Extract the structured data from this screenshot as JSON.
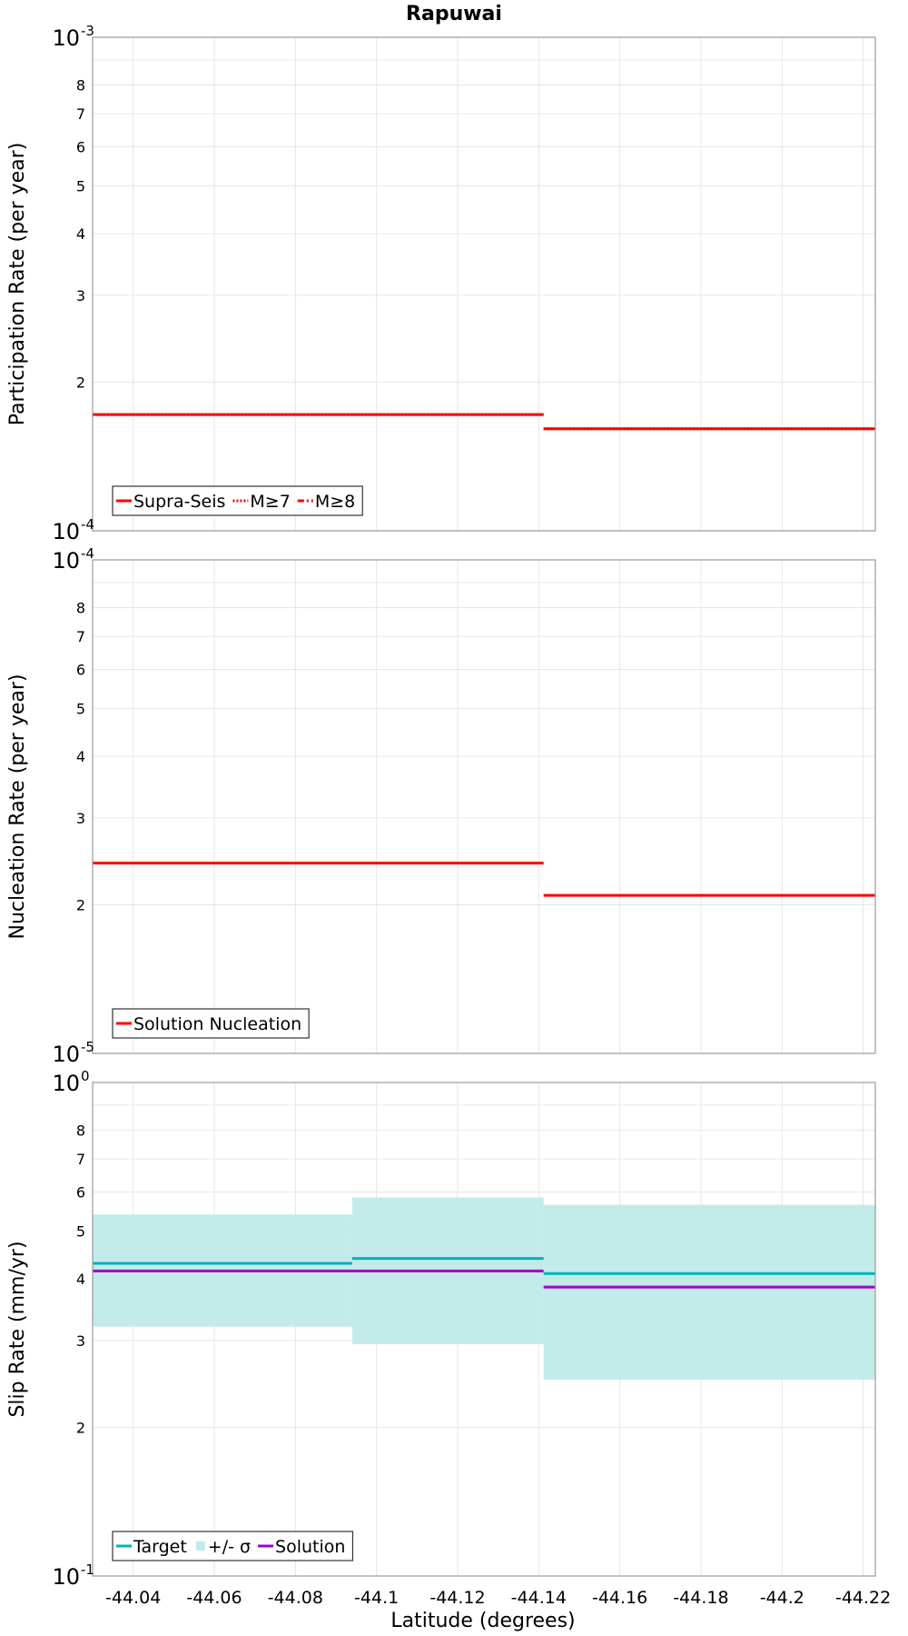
{
  "chart_data": {
    "title": "Rapuwai",
    "type": "line",
    "xlabel": "Latitude (degrees)",
    "xlim": [
      -44.03,
      -44.223
    ],
    "x_ticks": [
      -44.04,
      -44.06,
      -44.08,
      -44.1,
      -44.12,
      -44.14,
      -44.16,
      -44.18,
      -44.2,
      -44.22
    ],
    "x_tick_labels": [
      "-44.04",
      "-44.06",
      "-44.08",
      "-44.1",
      "-44.12",
      "-44.14",
      "-44.16",
      "-44.18",
      "-44.2",
      "-44.22"
    ],
    "grid": true,
    "legend_placement": "bottom-left",
    "panels": [
      {
        "ylabel": "Participation Rate (per year)",
        "yscale": "log",
        "ylim": [
          0.0001,
          0.001
        ],
        "y_major_labels": [
          {
            "base": "10",
            "exp": "-3",
            "value": 0.001
          },
          {
            "base": "10",
            "exp": "-4",
            "value": 0.0001
          }
        ],
        "y_minor_labels": [
          {
            "label": "8",
            "value": 0.0008
          },
          {
            "label": "7",
            "value": 0.0007
          },
          {
            "label": "6",
            "value": 0.0006
          },
          {
            "label": "5",
            "value": 0.0005
          },
          {
            "label": "4",
            "value": 0.0004
          },
          {
            "label": "3",
            "value": 0.0003
          },
          {
            "label": "2",
            "value": 0.0002
          }
        ],
        "series": [
          {
            "name": "Supra-Seis",
            "color": "#ff0000",
            "style": "solid",
            "segments": [
              {
                "x": [
                  -44.03,
                  -44.1412
                ],
                "y": 0.000172
              },
              {
                "x": [
                  -44.1412,
                  -44.223
                ],
                "y": 0.000161
              }
            ]
          },
          {
            "name": "M≥7",
            "color": "#ff0000",
            "style": "dotted",
            "segments": [
              {
                "x": [
                  -44.03,
                  -44.1412
                ],
                "y": 0.000172
              },
              {
                "x": [
                  -44.1412,
                  -44.223
                ],
                "y": 0.000161
              }
            ]
          },
          {
            "name": "M≥8",
            "color": "#ff0000",
            "style": "dashdot",
            "segments": []
          }
        ]
      },
      {
        "ylabel": "Nucleation Rate (per year)",
        "yscale": "log",
        "ylim": [
          1e-05,
          0.0001
        ],
        "y_major_labels": [
          {
            "base": "10",
            "exp": "-4",
            "value": 0.0001
          },
          {
            "base": "10",
            "exp": "-5",
            "value": 1e-05
          }
        ],
        "y_minor_labels": [
          {
            "label": "8",
            "value": 8e-05
          },
          {
            "label": "7",
            "value": 7e-05
          },
          {
            "label": "6",
            "value": 6e-05
          },
          {
            "label": "5",
            "value": 5e-05
          },
          {
            "label": "4",
            "value": 4e-05
          },
          {
            "label": "3",
            "value": 3e-05
          },
          {
            "label": "2",
            "value": 2e-05
          }
        ],
        "series": [
          {
            "name": "Solution Nucleation",
            "color": "#ff0000",
            "style": "solid",
            "segments": [
              {
                "x": [
                  -44.03,
                  -44.1412
                ],
                "y": 2.43e-05
              },
              {
                "x": [
                  -44.1412,
                  -44.223
                ],
                "y": 2.09e-05
              }
            ]
          }
        ]
      },
      {
        "ylabel": "Slip Rate (mm/yr)",
        "yscale": "log",
        "ylim": [
          0.1,
          1
        ],
        "y_major_labels": [
          {
            "base": "10",
            "exp": "0",
            "value": 1
          },
          {
            "base": "10",
            "exp": "-1",
            "value": 0.1
          }
        ],
        "y_minor_labels": [
          {
            "label": "8",
            "value": 0.8
          },
          {
            "label": "7",
            "value": 0.7
          },
          {
            "label": "6",
            "value": 0.6
          },
          {
            "label": "5",
            "value": 0.5
          },
          {
            "label": "4",
            "value": 0.4
          },
          {
            "label": "3",
            "value": 0.3
          },
          {
            "label": "2",
            "value": 0.2
          }
        ],
        "series": [
          {
            "name": "Target",
            "color": "#00b3b3",
            "style": "solid",
            "segments": [
              {
                "x": [
                  -44.03,
                  -44.094
                ],
                "y": 0.43
              },
              {
                "x": [
                  -44.094,
                  -44.1412
                ],
                "y": 0.44
              },
              {
                "x": [
                  -44.1412,
                  -44.223
                ],
                "y": 0.41
              }
            ]
          },
          {
            "name": "+/- σ",
            "color": "#c2ebea",
            "style": "band",
            "bands": [
              {
                "x": [
                  -44.03,
                  -44.094
                ],
                "y": [
                  0.32,
                  0.54
                ]
              },
              {
                "x": [
                  -44.094,
                  -44.1412
                ],
                "y": [
                  0.295,
                  0.585
                ]
              },
              {
                "x": [
                  -44.1412,
                  -44.223
                ],
                "y": [
                  0.25,
                  0.565
                ]
              }
            ]
          },
          {
            "name": "Solution",
            "color": "#a000c8",
            "style": "solid",
            "segments": [
              {
                "x": [
                  -44.03,
                  -44.1412
                ],
                "y": 0.415
              },
              {
                "x": [
                  -44.1412,
                  -44.223
                ],
                "y": 0.385
              }
            ]
          }
        ]
      }
    ]
  }
}
